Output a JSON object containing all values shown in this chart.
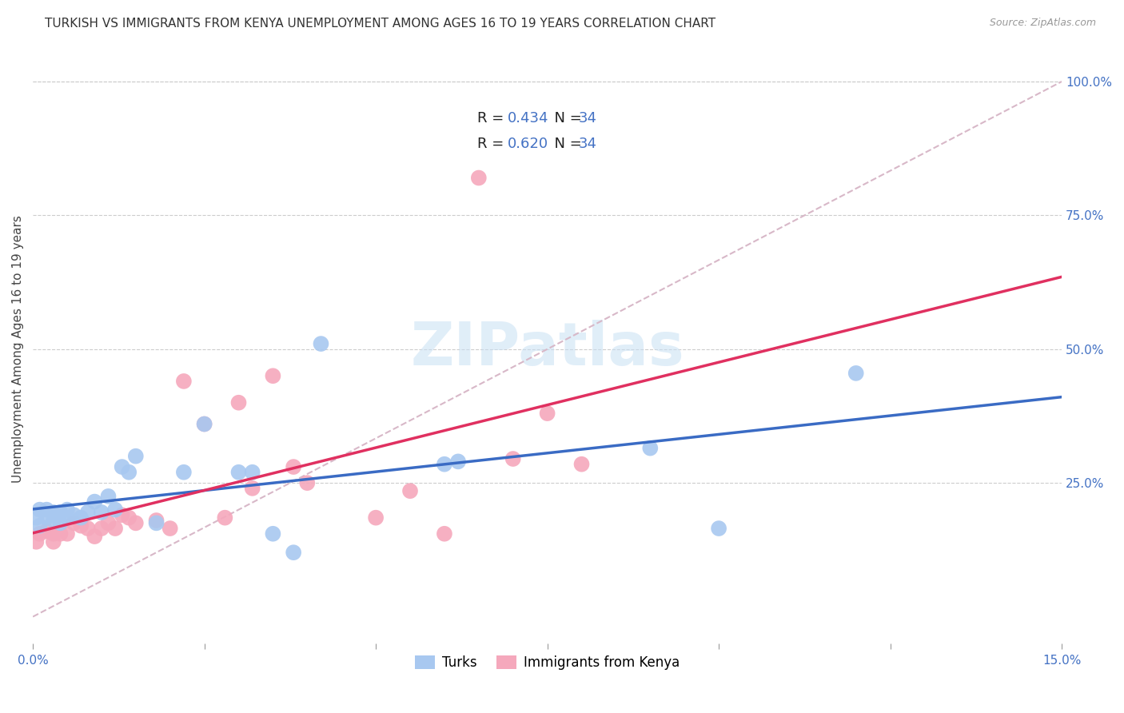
{
  "title": "TURKISH VS IMMIGRANTS FROM KENYA UNEMPLOYMENT AMONG AGES 16 TO 19 YEARS CORRELATION CHART",
  "source": "Source: ZipAtlas.com",
  "ylabel": "Unemployment Among Ages 16 to 19 years",
  "xlim": [
    0.0,
    0.15
  ],
  "ylim": [
    -0.05,
    1.05
  ],
  "turks_color": "#a8c8f0",
  "kenya_color": "#f5a8bc",
  "turks_line_color": "#3a6bc4",
  "kenya_line_color": "#e03060",
  "ref_line_color": "#d8b8c8",
  "R_turks": 0.434,
  "N_turks": 34,
  "R_kenya": 0.62,
  "N_kenya": 34,
  "turks_x": [
    0.0005,
    0.001,
    0.001,
    0.002,
    0.002,
    0.003,
    0.003,
    0.004,
    0.004,
    0.005,
    0.005,
    0.006,
    0.007,
    0.008,
    0.009,
    0.01,
    0.011,
    0.012,
    0.013,
    0.014,
    0.015,
    0.018,
    0.022,
    0.025,
    0.03,
    0.032,
    0.035,
    0.038,
    0.042,
    0.06,
    0.062,
    0.09,
    0.1,
    0.12
  ],
  "turks_y": [
    0.185,
    0.2,
    0.17,
    0.2,
    0.185,
    0.195,
    0.18,
    0.195,
    0.175,
    0.2,
    0.185,
    0.19,
    0.185,
    0.195,
    0.215,
    0.195,
    0.225,
    0.2,
    0.28,
    0.27,
    0.3,
    0.175,
    0.27,
    0.36,
    0.27,
    0.27,
    0.155,
    0.12,
    0.51,
    0.285,
    0.29,
    0.315,
    0.165,
    0.455
  ],
  "kenya_x": [
    0.0005,
    0.001,
    0.002,
    0.003,
    0.003,
    0.004,
    0.005,
    0.006,
    0.007,
    0.008,
    0.009,
    0.01,
    0.011,
    0.012,
    0.013,
    0.014,
    0.015,
    0.018,
    0.02,
    0.022,
    0.025,
    0.028,
    0.03,
    0.032,
    0.035,
    0.038,
    0.04,
    0.05,
    0.055,
    0.06,
    0.065,
    0.07,
    0.075,
    0.08
  ],
  "kenya_y": [
    0.14,
    0.155,
    0.16,
    0.14,
    0.155,
    0.155,
    0.155,
    0.175,
    0.17,
    0.165,
    0.15,
    0.165,
    0.175,
    0.165,
    0.19,
    0.185,
    0.175,
    0.18,
    0.165,
    0.44,
    0.36,
    0.185,
    0.4,
    0.24,
    0.45,
    0.28,
    0.25,
    0.185,
    0.235,
    0.155,
    0.82,
    0.295,
    0.38,
    0.285
  ],
  "background_color": "#ffffff",
  "grid_color": "#cccccc",
  "watermark": "ZIPatlas",
  "title_fontsize": 11,
  "axis_label_fontsize": 11,
  "tick_fontsize": 11,
  "legend_fontsize": 13
}
